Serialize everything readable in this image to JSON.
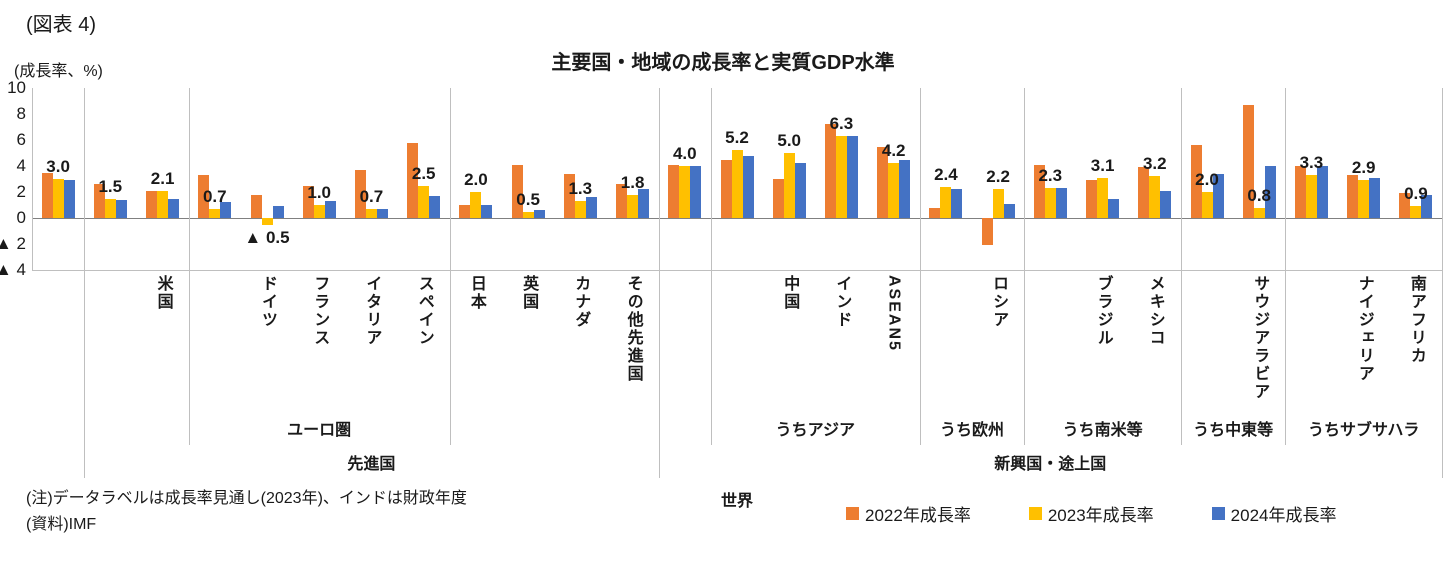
{
  "figure_label": "(図表 4)",
  "notes": [
    "(注)データラベルは成長率見通し(2023年)、インドは財政年度",
    "(資料)IMF"
  ],
  "chart_data": {
    "type": "bar",
    "title": "主要国・地域の成長率と実質GDP水準",
    "ylabel": "(成長率、%)",
    "ylim": [
      -4,
      10
    ],
    "ytick_values": [
      10,
      8,
      6,
      4,
      2,
      0,
      -2,
      -4
    ],
    "negative_prefix": "▲ ",
    "grid": false,
    "legend_position": "bottom-right",
    "data_label_series": "2023年成長率",
    "categories": [
      "世界",
      "先進国",
      "米国",
      "ユーロ圏",
      "ドイツ",
      "フランス",
      "イタリア",
      "スペイン",
      "日本",
      "英国",
      "カナダ",
      "その他先進国",
      "新興国・途上国",
      "うちアジア",
      "中国",
      "インド",
      "ASEAN5",
      "うち欧州",
      "ロシア",
      "うち南米等",
      "ブラジル",
      "メキシコ",
      "うち中東等",
      "サウジアラビア",
      "うちサブサハラ",
      "ナイジェリア",
      "南アフリカ"
    ],
    "category_tick_labels": [
      "",
      "",
      "米国",
      "",
      "ドイツ",
      "フランス",
      "イタリア",
      "スペイン",
      "日本",
      "英国",
      "カナダ",
      "その他先進国",
      "",
      "",
      "中国",
      "インド",
      "ASEAN5",
      "",
      "ロシア",
      "",
      "ブラジル",
      "メキシコ",
      "",
      "サウジアラビア",
      "",
      "ナイジェリア",
      "南アフリカ"
    ],
    "axis_group_labels": {
      "level2": [
        {
          "label": "ユーロ圏",
          "from": 3,
          "to": 7
        },
        {
          "label": "うちアジア",
          "from": 13,
          "to": 16
        },
        {
          "label": "うち欧州",
          "from": 17,
          "to": 18
        },
        {
          "label": "うち南米等",
          "from": 19,
          "to": 21
        },
        {
          "label": "うち中東等",
          "from": 22,
          "to": 23
        },
        {
          "label": "うちサブサハラ",
          "from": 24,
          "to": 26
        }
      ],
      "level1": [
        {
          "label": "先進国",
          "from": 1,
          "to": 11
        },
        {
          "label": "新興国・途上国",
          "from": 12,
          "to": 26
        }
      ],
      "level0": [
        {
          "label": "世界",
          "from": 0,
          "to": 26
        }
      ]
    },
    "series": [
      {
        "name": "2022年成長率",
        "color": "#ED7D31",
        "values": [
          3.5,
          2.6,
          2.1,
          3.3,
          1.8,
          2.5,
          3.7,
          5.8,
          1.0,
          4.1,
          3.4,
          2.6,
          4.1,
          4.5,
          3.0,
          7.2,
          5.5,
          0.8,
          -2.1,
          4.1,
          2.9,
          3.9,
          5.6,
          8.7,
          4.0,
          3.3,
          1.9
        ]
      },
      {
        "name": "2023年成長率",
        "color": "#FFC000",
        "values": [
          3.0,
          1.5,
          2.1,
          0.7,
          -0.5,
          1.0,
          0.7,
          2.5,
          2.0,
          0.5,
          1.3,
          1.8,
          4.0,
          5.2,
          5.0,
          6.3,
          4.2,
          2.4,
          2.2,
          2.3,
          3.1,
          3.2,
          2.0,
          0.8,
          3.3,
          2.9,
          0.9
        ]
      },
      {
        "name": "2024年成長率",
        "color": "#4472C4",
        "values": [
          2.9,
          1.4,
          1.5,
          1.2,
          0.9,
          1.3,
          0.7,
          1.7,
          1.0,
          0.6,
          1.6,
          2.2,
          4.0,
          4.8,
          4.2,
          6.3,
          4.5,
          2.2,
          1.1,
          2.3,
          1.5,
          2.1,
          3.4,
          4.0,
          4.0,
          3.1,
          1.8
        ]
      }
    ]
  }
}
